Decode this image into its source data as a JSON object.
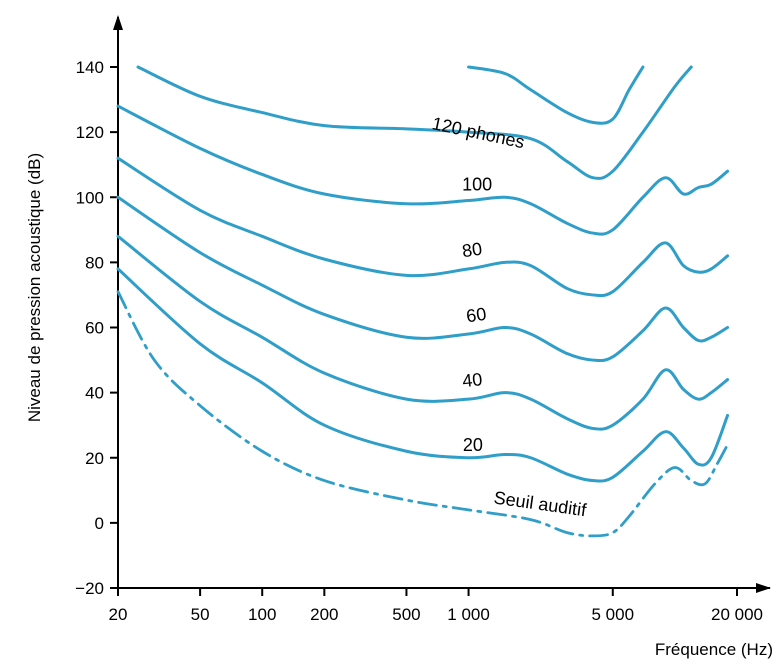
{
  "chart_data": {
    "type": "line",
    "title": "",
    "xlabel": "Fréquence (Hz)",
    "ylabel": "Niveau de pression acoustique (dB)",
    "x_scale": "log",
    "xlim": [
      20,
      20000
    ],
    "ylim": [
      -20,
      140
    ],
    "x_ticks": [
      20,
      50,
      100,
      200,
      500,
      1000,
      5000,
      20000
    ],
    "x_tick_labels": [
      "20",
      "50",
      "100",
      "200",
      "500",
      "1 000",
      "5 000",
      "20 000"
    ],
    "y_ticks": [
      -20,
      0,
      20,
      40,
      60,
      80,
      100,
      120,
      140
    ],
    "y_tick_labels": [
      "−20",
      "0",
      "20",
      "40",
      "60",
      "80",
      "100",
      "120",
      "140"
    ],
    "grid": false,
    "legend": "none",
    "colors": {
      "curve": "#2f9ec8",
      "axis": "#000000",
      "text": "#000000",
      "background": "#ffffff"
    },
    "series": [
      {
        "name": "Seuil auditif",
        "style": "dash-dot",
        "label": "Seuil auditif",
        "points": [
          [
            20,
            71
          ],
          [
            30,
            50
          ],
          [
            50,
            36
          ],
          [
            100,
            22
          ],
          [
            200,
            13
          ],
          [
            500,
            7
          ],
          [
            1000,
            4
          ],
          [
            2000,
            1
          ],
          [
            3000,
            -3
          ],
          [
            4000,
            -4
          ],
          [
            5000,
            -3
          ],
          [
            6000,
            2
          ],
          [
            8000,
            12
          ],
          [
            10000,
            17
          ],
          [
            12000,
            13
          ],
          [
            14000,
            12
          ],
          [
            16000,
            18
          ],
          [
            18000,
            24
          ]
        ]
      },
      {
        "name": "20",
        "style": "solid",
        "label": "20",
        "points": [
          [
            20,
            78
          ],
          [
            50,
            55
          ],
          [
            100,
            43
          ],
          [
            200,
            30
          ],
          [
            500,
            22
          ],
          [
            1000,
            20
          ],
          [
            1500,
            21
          ],
          [
            2000,
            20
          ],
          [
            3000,
            15
          ],
          [
            4000,
            13
          ],
          [
            5000,
            14
          ],
          [
            7000,
            22
          ],
          [
            9000,
            28
          ],
          [
            11000,
            23
          ],
          [
            13000,
            18
          ],
          [
            15000,
            20
          ],
          [
            18000,
            33
          ]
        ]
      },
      {
        "name": "40",
        "style": "solid",
        "label": "40",
        "points": [
          [
            20,
            88
          ],
          [
            50,
            68
          ],
          [
            100,
            57
          ],
          [
            200,
            46
          ],
          [
            500,
            38
          ],
          [
            1000,
            38
          ],
          [
            1500,
            40
          ],
          [
            2000,
            38
          ],
          [
            3000,
            32
          ],
          [
            4000,
            29
          ],
          [
            5000,
            30
          ],
          [
            7000,
            38
          ],
          [
            9000,
            47
          ],
          [
            11000,
            41
          ],
          [
            13000,
            38
          ],
          [
            15000,
            40
          ],
          [
            18000,
            44
          ]
        ]
      },
      {
        "name": "60",
        "style": "solid",
        "label": "60",
        "points": [
          [
            20,
            100
          ],
          [
            50,
            83
          ],
          [
            100,
            73
          ],
          [
            200,
            64
          ],
          [
            500,
            57
          ],
          [
            1000,
            58
          ],
          [
            1500,
            60
          ],
          [
            2000,
            58
          ],
          [
            3000,
            52
          ],
          [
            4000,
            50
          ],
          [
            5000,
            51
          ],
          [
            7000,
            59
          ],
          [
            9000,
            66
          ],
          [
            11000,
            60
          ],
          [
            13000,
            56
          ],
          [
            15000,
            57
          ],
          [
            18000,
            60
          ]
        ]
      },
      {
        "name": "80",
        "style": "solid",
        "label": "80",
        "points": [
          [
            20,
            112
          ],
          [
            50,
            96
          ],
          [
            100,
            88
          ],
          [
            200,
            81
          ],
          [
            500,
            76
          ],
          [
            1000,
            78
          ],
          [
            1500,
            80
          ],
          [
            2000,
            79
          ],
          [
            3000,
            72
          ],
          [
            4000,
            70
          ],
          [
            5000,
            71
          ],
          [
            7000,
            80
          ],
          [
            9000,
            86
          ],
          [
            11000,
            79
          ],
          [
            13000,
            77
          ],
          [
            15000,
            78
          ],
          [
            18000,
            82
          ]
        ]
      },
      {
        "name": "100",
        "style": "solid",
        "label": "100",
        "points": [
          [
            20,
            128
          ],
          [
            50,
            115
          ],
          [
            100,
            107
          ],
          [
            200,
            101
          ],
          [
            500,
            98
          ],
          [
            1000,
            99
          ],
          [
            1500,
            100
          ],
          [
            2000,
            98
          ],
          [
            3000,
            92
          ],
          [
            4000,
            89
          ],
          [
            5000,
            90
          ],
          [
            7000,
            100
          ],
          [
            9000,
            106
          ],
          [
            11000,
            101
          ],
          [
            13000,
            103
          ],
          [
            15000,
            104
          ],
          [
            18000,
            108
          ]
        ]
      },
      {
        "name": "120 phones",
        "style": "solid",
        "label": "120 phones",
        "points": [
          [
            25,
            140
          ],
          [
            50,
            131
          ],
          [
            100,
            126
          ],
          [
            200,
            122
          ],
          [
            500,
            121
          ],
          [
            1000,
            120
          ],
          [
            2000,
            118
          ],
          [
            3000,
            111
          ],
          [
            4000,
            106
          ],
          [
            5000,
            108
          ],
          [
            7000,
            120
          ],
          [
            10000,
            134
          ],
          [
            12000,
            140
          ]
        ]
      },
      {
        "name": "",
        "style": "solid",
        "label": "",
        "points": [
          [
            1000,
            140
          ],
          [
            1500,
            138
          ],
          [
            2000,
            133
          ],
          [
            3000,
            126
          ],
          [
            4000,
            123
          ],
          [
            5000,
            124
          ],
          [
            6000,
            133
          ],
          [
            7000,
            140
          ]
        ]
      }
    ],
    "annotations": [
      {
        "text": "Seuil auditif",
        "x": 2200,
        "y": 4,
        "rotate": 8
      },
      {
        "text": "20",
        "x": 1050,
        "y": 22,
        "rotate": 0
      },
      {
        "text": "40",
        "x": 1050,
        "y": 42,
        "rotate": -6
      },
      {
        "text": "60",
        "x": 1100,
        "y": 62,
        "rotate": -8
      },
      {
        "text": "80",
        "x": 1050,
        "y": 82,
        "rotate": -8
      },
      {
        "text": "100",
        "x": 1100,
        "y": 102,
        "rotate": 0
      },
      {
        "text": "120 phones",
        "x": 1100,
        "y": 118,
        "rotate": 12
      }
    ]
  }
}
